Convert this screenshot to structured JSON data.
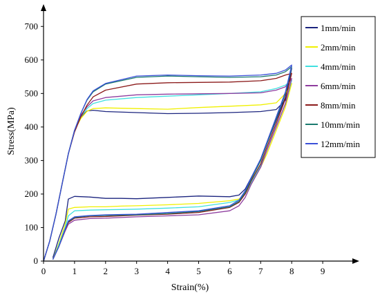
{
  "chart_data": {
    "type": "line",
    "title": "",
    "xlabel": "Strain(%)",
    "ylabel": "Stress(MPa)",
    "xlim": [
      0,
      10
    ],
    "ylim": [
      0,
      750
    ],
    "xticks": [
      0,
      1,
      2,
      3,
      4,
      5,
      6,
      7,
      8,
      9
    ],
    "yticks": [
      0,
      100,
      200,
      300,
      400,
      500,
      600,
      700
    ],
    "grid": false,
    "legend_position": "top-right",
    "series": [
      {
        "name": "1mm/min",
        "color": "#1a237e",
        "loading": [
          [
            0,
            0
          ],
          [
            0.2,
            60
          ],
          [
            0.4,
            140
          ],
          [
            0.6,
            230
          ],
          [
            0.8,
            320
          ],
          [
            1.0,
            390
          ],
          [
            1.2,
            430
          ],
          [
            1.4,
            448
          ],
          [
            1.6,
            450
          ],
          [
            2.0,
            446
          ],
          [
            3.0,
            443
          ],
          [
            4.0,
            440
          ],
          [
            5.0,
            441
          ],
          [
            6.0,
            443
          ],
          [
            7.0,
            446
          ],
          [
            7.5,
            452
          ],
          [
            7.8,
            480
          ],
          [
            8.0,
            575
          ]
        ],
        "unloading": [
          [
            8.0,
            575
          ],
          [
            7.8,
            490
          ],
          [
            7.5,
            420
          ],
          [
            7.2,
            350
          ],
          [
            7.0,
            300
          ],
          [
            6.7,
            250
          ],
          [
            6.5,
            215
          ],
          [
            6.3,
            197
          ],
          [
            6.0,
            192
          ],
          [
            5.0,
            194
          ],
          [
            4.0,
            190
          ],
          [
            3.0,
            186
          ],
          [
            2.5,
            187
          ],
          [
            2.0,
            187
          ],
          [
            1.5,
            191
          ],
          [
            1.0,
            193
          ],
          [
            0.8,
            185
          ],
          [
            0.7,
            120
          ],
          [
            0.5,
            70
          ],
          [
            0.3,
            10
          ]
        ]
      },
      {
        "name": "2mm/min",
        "color": "#f0f000",
        "loading": [
          [
            0,
            0
          ],
          [
            0.2,
            60
          ],
          [
            0.4,
            140
          ],
          [
            0.6,
            230
          ],
          [
            0.8,
            320
          ],
          [
            1.0,
            390
          ],
          [
            1.2,
            425
          ],
          [
            1.4,
            447
          ],
          [
            1.6,
            455
          ],
          [
            2.0,
            457
          ],
          [
            3.0,
            455
          ],
          [
            4.0,
            453
          ],
          [
            5.0,
            458
          ],
          [
            6.0,
            462
          ],
          [
            7.0,
            466
          ],
          [
            7.5,
            472
          ],
          [
            7.8,
            500
          ],
          [
            8.0,
            530
          ]
        ],
        "unloading": [
          [
            8.0,
            530
          ],
          [
            7.8,
            460
          ],
          [
            7.5,
            390
          ],
          [
            7.2,
            320
          ],
          [
            7.0,
            280
          ],
          [
            6.7,
            230
          ],
          [
            6.5,
            200
          ],
          [
            6.3,
            185
          ],
          [
            6.0,
            180
          ],
          [
            5.0,
            172
          ],
          [
            4.0,
            168
          ],
          [
            3.0,
            165
          ],
          [
            2.5,
            164
          ],
          [
            2.0,
            162
          ],
          [
            1.5,
            162
          ],
          [
            1.0,
            160
          ],
          [
            0.8,
            155
          ],
          [
            0.7,
            110
          ],
          [
            0.5,
            55
          ],
          [
            0.3,
            5
          ]
        ]
      },
      {
        "name": "4mm/min",
        "color": "#40e0e0",
        "loading": [
          [
            0,
            0
          ],
          [
            0.2,
            60
          ],
          [
            0.4,
            140
          ],
          [
            0.6,
            230
          ],
          [
            0.8,
            320
          ],
          [
            1.0,
            390
          ],
          [
            1.2,
            430
          ],
          [
            1.4,
            455
          ],
          [
            1.6,
            470
          ],
          [
            2.0,
            480
          ],
          [
            3.0,
            488
          ],
          [
            4.0,
            492
          ],
          [
            5.0,
            496
          ],
          [
            6.0,
            500
          ],
          [
            7.0,
            505
          ],
          [
            7.5,
            515
          ],
          [
            7.8,
            525
          ],
          [
            8.0,
            540
          ]
        ],
        "unloading": [
          [
            8.0,
            540
          ],
          [
            7.8,
            470
          ],
          [
            7.5,
            400
          ],
          [
            7.2,
            330
          ],
          [
            7.0,
            285
          ],
          [
            6.7,
            235
          ],
          [
            6.5,
            200
          ],
          [
            6.3,
            182
          ],
          [
            6.0,
            175
          ],
          [
            5.0,
            162
          ],
          [
            4.0,
            158
          ],
          [
            3.0,
            155
          ],
          [
            2.5,
            154
          ],
          [
            2.0,
            153
          ],
          [
            1.5,
            152
          ],
          [
            1.0,
            150
          ],
          [
            0.8,
            135
          ],
          [
            0.7,
            100
          ],
          [
            0.5,
            50
          ],
          [
            0.3,
            5
          ]
        ]
      },
      {
        "name": "6mm/min",
        "color": "#8e3c9e",
        "loading": [
          [
            0,
            0
          ],
          [
            0.2,
            60
          ],
          [
            0.4,
            140
          ],
          [
            0.6,
            230
          ],
          [
            0.8,
            320
          ],
          [
            1.0,
            390
          ],
          [
            1.2,
            435
          ],
          [
            1.4,
            460
          ],
          [
            1.6,
            478
          ],
          [
            2.0,
            488
          ],
          [
            3.0,
            496
          ],
          [
            4.0,
            498
          ],
          [
            5.0,
            499
          ],
          [
            6.0,
            500
          ],
          [
            7.0,
            502
          ],
          [
            7.5,
            510
          ],
          [
            7.8,
            520
          ],
          [
            8.0,
            545
          ]
        ],
        "unloading": [
          [
            8.0,
            545
          ],
          [
            7.8,
            470
          ],
          [
            7.5,
            400
          ],
          [
            7.2,
            330
          ],
          [
            7.0,
            280
          ],
          [
            6.7,
            230
          ],
          [
            6.5,
            190
          ],
          [
            6.3,
            165
          ],
          [
            6.0,
            150
          ],
          [
            5.0,
            138
          ],
          [
            4.0,
            135
          ],
          [
            3.0,
            132
          ],
          [
            2.5,
            130
          ],
          [
            2.0,
            128
          ],
          [
            1.5,
            127
          ],
          [
            1.0,
            122
          ],
          [
            0.8,
            110
          ],
          [
            0.7,
            90
          ],
          [
            0.5,
            45
          ],
          [
            0.3,
            5
          ]
        ]
      },
      {
        "name": "8mm/min",
        "color": "#8b1a1a",
        "loading": [
          [
            0,
            0
          ],
          [
            0.2,
            60
          ],
          [
            0.4,
            140
          ],
          [
            0.6,
            230
          ],
          [
            0.8,
            320
          ],
          [
            1.0,
            385
          ],
          [
            1.2,
            430
          ],
          [
            1.4,
            465
          ],
          [
            1.6,
            490
          ],
          [
            2.0,
            510
          ],
          [
            3.0,
            528
          ],
          [
            4.0,
            532
          ],
          [
            5.0,
            533
          ],
          [
            6.0,
            534
          ],
          [
            7.0,
            538
          ],
          [
            7.5,
            545
          ],
          [
            7.8,
            555
          ],
          [
            8.0,
            560
          ]
        ],
        "unloading": [
          [
            8.0,
            560
          ],
          [
            7.8,
            485
          ],
          [
            7.5,
            410
          ],
          [
            7.2,
            340
          ],
          [
            7.0,
            290
          ],
          [
            6.7,
            240
          ],
          [
            6.5,
            200
          ],
          [
            6.3,
            175
          ],
          [
            6.0,
            160
          ],
          [
            5.0,
            145
          ],
          [
            4.0,
            140
          ],
          [
            3.0,
            137
          ],
          [
            2.5,
            135
          ],
          [
            2.0,
            133
          ],
          [
            1.5,
            132
          ],
          [
            1.0,
            128
          ],
          [
            0.8,
            115
          ],
          [
            0.7,
            95
          ],
          [
            0.5,
            45
          ],
          [
            0.3,
            5
          ]
        ]
      },
      {
        "name": "10mm/min",
        "color": "#1a7a6e",
        "loading": [
          [
            0,
            0
          ],
          [
            0.2,
            60
          ],
          [
            0.4,
            140
          ],
          [
            0.6,
            230
          ],
          [
            0.8,
            320
          ],
          [
            1.0,
            390
          ],
          [
            1.2,
            440
          ],
          [
            1.4,
            480
          ],
          [
            1.6,
            505
          ],
          [
            2.0,
            528
          ],
          [
            3.0,
            548
          ],
          [
            4.0,
            552
          ],
          [
            5.0,
            550
          ],
          [
            6.0,
            548
          ],
          [
            7.0,
            550
          ],
          [
            7.5,
            555
          ],
          [
            7.8,
            565
          ],
          [
            8.0,
            580
          ]
        ],
        "unloading": [
          [
            8.0,
            580
          ],
          [
            7.8,
            500
          ],
          [
            7.5,
            425
          ],
          [
            7.2,
            350
          ],
          [
            7.0,
            300
          ],
          [
            6.7,
            245
          ],
          [
            6.5,
            205
          ],
          [
            6.3,
            178
          ],
          [
            6.0,
            162
          ],
          [
            5.0,
            148
          ],
          [
            4.0,
            142
          ],
          [
            3.0,
            138
          ],
          [
            2.5,
            137
          ],
          [
            2.0,
            136
          ],
          [
            1.5,
            135
          ],
          [
            1.0,
            130
          ],
          [
            0.8,
            118
          ],
          [
            0.7,
            95
          ],
          [
            0.5,
            45
          ],
          [
            0.3,
            5
          ]
        ]
      },
      {
        "name": "12mm/min",
        "color": "#3a4fd8",
        "loading": [
          [
            0,
            0
          ],
          [
            0.2,
            60
          ],
          [
            0.4,
            140
          ],
          [
            0.6,
            230
          ],
          [
            0.8,
            320
          ],
          [
            1.0,
            390
          ],
          [
            1.2,
            440
          ],
          [
            1.4,
            482
          ],
          [
            1.6,
            508
          ],
          [
            2.0,
            530
          ],
          [
            3.0,
            552
          ],
          [
            4.0,
            555
          ],
          [
            5.0,
            553
          ],
          [
            6.0,
            552
          ],
          [
            7.0,
            555
          ],
          [
            7.5,
            560
          ],
          [
            7.8,
            570
          ],
          [
            8.0,
            585
          ]
        ],
        "unloading": [
          [
            8.0,
            585
          ],
          [
            7.8,
            505
          ],
          [
            7.5,
            430
          ],
          [
            7.2,
            355
          ],
          [
            7.0,
            305
          ],
          [
            6.7,
            250
          ],
          [
            6.5,
            210
          ],
          [
            6.3,
            182
          ],
          [
            6.0,
            165
          ],
          [
            5.0,
            150
          ],
          [
            4.0,
            145
          ],
          [
            3.0,
            140
          ],
          [
            2.5,
            139
          ],
          [
            2.0,
            138
          ],
          [
            1.5,
            136
          ],
          [
            1.0,
            132
          ],
          [
            0.8,
            120
          ],
          [
            0.7,
            96
          ],
          [
            0.5,
            45
          ],
          [
            0.3,
            5
          ]
        ]
      }
    ]
  }
}
